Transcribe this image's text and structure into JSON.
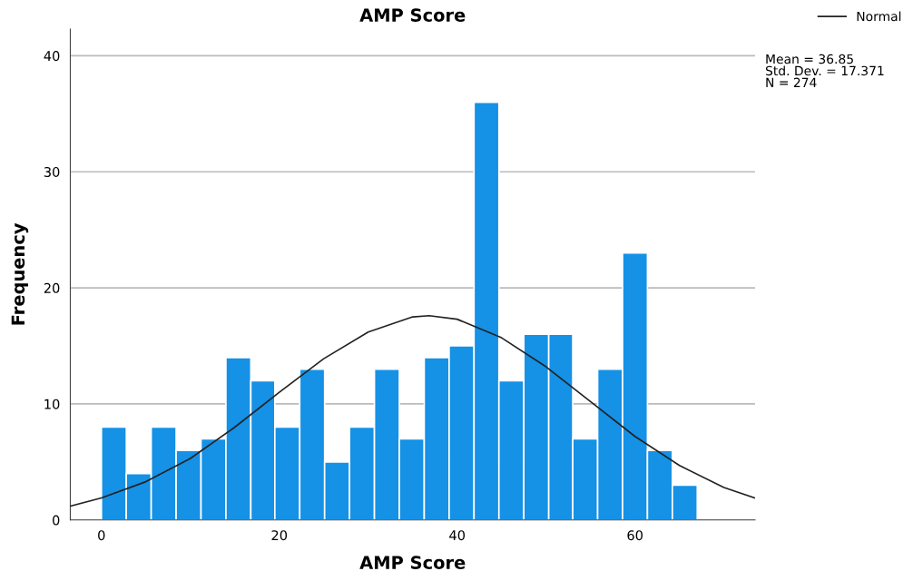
{
  "chart_data": {
    "type": "histogram",
    "title": "AMP Score",
    "xlabel": "AMP Score",
    "ylabel": "Frequency",
    "bins": [
      0,
      2.8,
      5.6,
      8.4,
      11.2,
      14.0,
      16.8,
      19.5,
      22.3,
      25.1,
      27.9,
      30.7,
      33.5,
      36.3,
      39.1,
      41.9,
      44.7,
      47.5,
      50.3,
      53.0,
      55.8,
      58.6,
      61.4,
      64.2,
      67.0
    ],
    "values": [
      8,
      4,
      8,
      6,
      7,
      14,
      12,
      8,
      13,
      5,
      8,
      13,
      7,
      14,
      15,
      36,
      12,
      16,
      16,
      7,
      13,
      23,
      6,
      3
    ],
    "color": "#1591e6",
    "series": [
      {
        "type": "line",
        "name": "Normal",
        "color": "#222222",
        "x": [
          -3.5,
          0,
          5,
          10,
          15,
          20,
          25,
          30,
          35,
          36.85,
          40,
          45,
          50,
          55,
          60,
          65,
          70,
          73.5
        ],
        "values": [
          1.2,
          1.9,
          3.3,
          5.3,
          8.0,
          11.0,
          13.9,
          16.2,
          17.5,
          17.6,
          17.3,
          15.7,
          13.2,
          10.2,
          7.2,
          4.7,
          2.8,
          1.9
        ]
      }
    ],
    "annotations": [
      "Mean = 36.85\nStd. Dev. = 17.371\nN = 274"
    ],
    "xlim": [
      -3.5,
      73.5
    ],
    "ylim": [
      0,
      42.3
    ],
    "xticks": [
      0,
      20,
      40,
      60
    ],
    "yticks": [
      0,
      10,
      20,
      30,
      40
    ],
    "grid": "y",
    "legend": "top right",
    "marker": "none",
    "line_style": "solid"
  }
}
